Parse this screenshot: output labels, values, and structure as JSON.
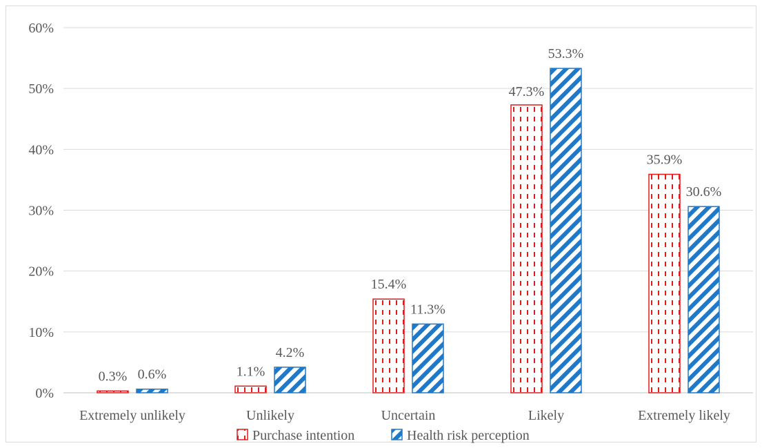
{
  "chart_data": {
    "type": "bar",
    "categories": [
      "Extremely unlikely",
      "Unlikely",
      "Uncertain",
      "Likely",
      "Extremely likely"
    ],
    "series": [
      {
        "name": "Purchase intention",
        "values": [
          0.3,
          1.1,
          15.4,
          47.3,
          35.9
        ],
        "labels": [
          "0.3%",
          "1.1%",
          "15.4%",
          "47.3%",
          "35.9%"
        ],
        "color": "#e31a1c"
      },
      {
        "name": "Health risk perception",
        "values": [
          0.6,
          4.2,
          11.3,
          53.3,
          30.6
        ],
        "labels": [
          "0.6%",
          "4.2%",
          "11.3%",
          "53.3%",
          "30.6%"
        ],
        "color": "#1f78c8"
      }
    ],
    "ylim": [
      0,
      60
    ],
    "yticks": [
      "0%",
      "10%",
      "20%",
      "30%",
      "40%",
      "50%",
      "60%"
    ],
    "ytick_values": [
      0,
      10,
      20,
      30,
      40,
      50,
      60
    ],
    "grid": true,
    "legend_position": "bottom",
    "title": "",
    "xlabel": "",
    "ylabel": ""
  }
}
